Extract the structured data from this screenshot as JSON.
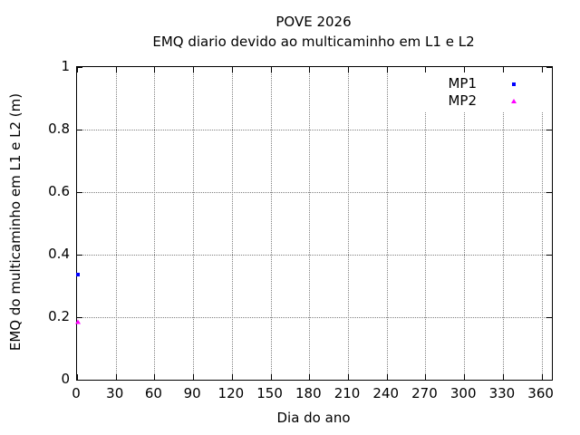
{
  "chart_data": {
    "type": "scatter",
    "title": "POVE 2026",
    "subtitle": "EMQ diario devido ao multicaminho em L1 e L2",
    "xlabel": "Dia do ano",
    "ylabel": "EMQ do multicaminho em L1 e L2 (m)",
    "xlim": [
      0,
      368
    ],
    "ylim": [
      0,
      1
    ],
    "x_ticks": [
      0,
      30,
      60,
      90,
      120,
      150,
      180,
      210,
      240,
      270,
      300,
      330,
      360
    ],
    "y_ticks": [
      0,
      0.2,
      0.4,
      0.6,
      0.8,
      1
    ],
    "grid": true,
    "grid_style": "dotted",
    "legend_position": "top-right",
    "series": [
      {
        "name": "MP1",
        "color": "#0000ff",
        "marker": "square",
        "points": [
          {
            "x": 1,
            "y": 0.335
          }
        ]
      },
      {
        "name": "MP2",
        "color": "#ff00ff",
        "marker": "triangle",
        "points": [
          {
            "x": 1,
            "y": 0.185
          }
        ]
      }
    ]
  },
  "colors": {
    "background": "#ffffff",
    "border": "#000000",
    "grid": "#808080",
    "text": "#000000"
  }
}
